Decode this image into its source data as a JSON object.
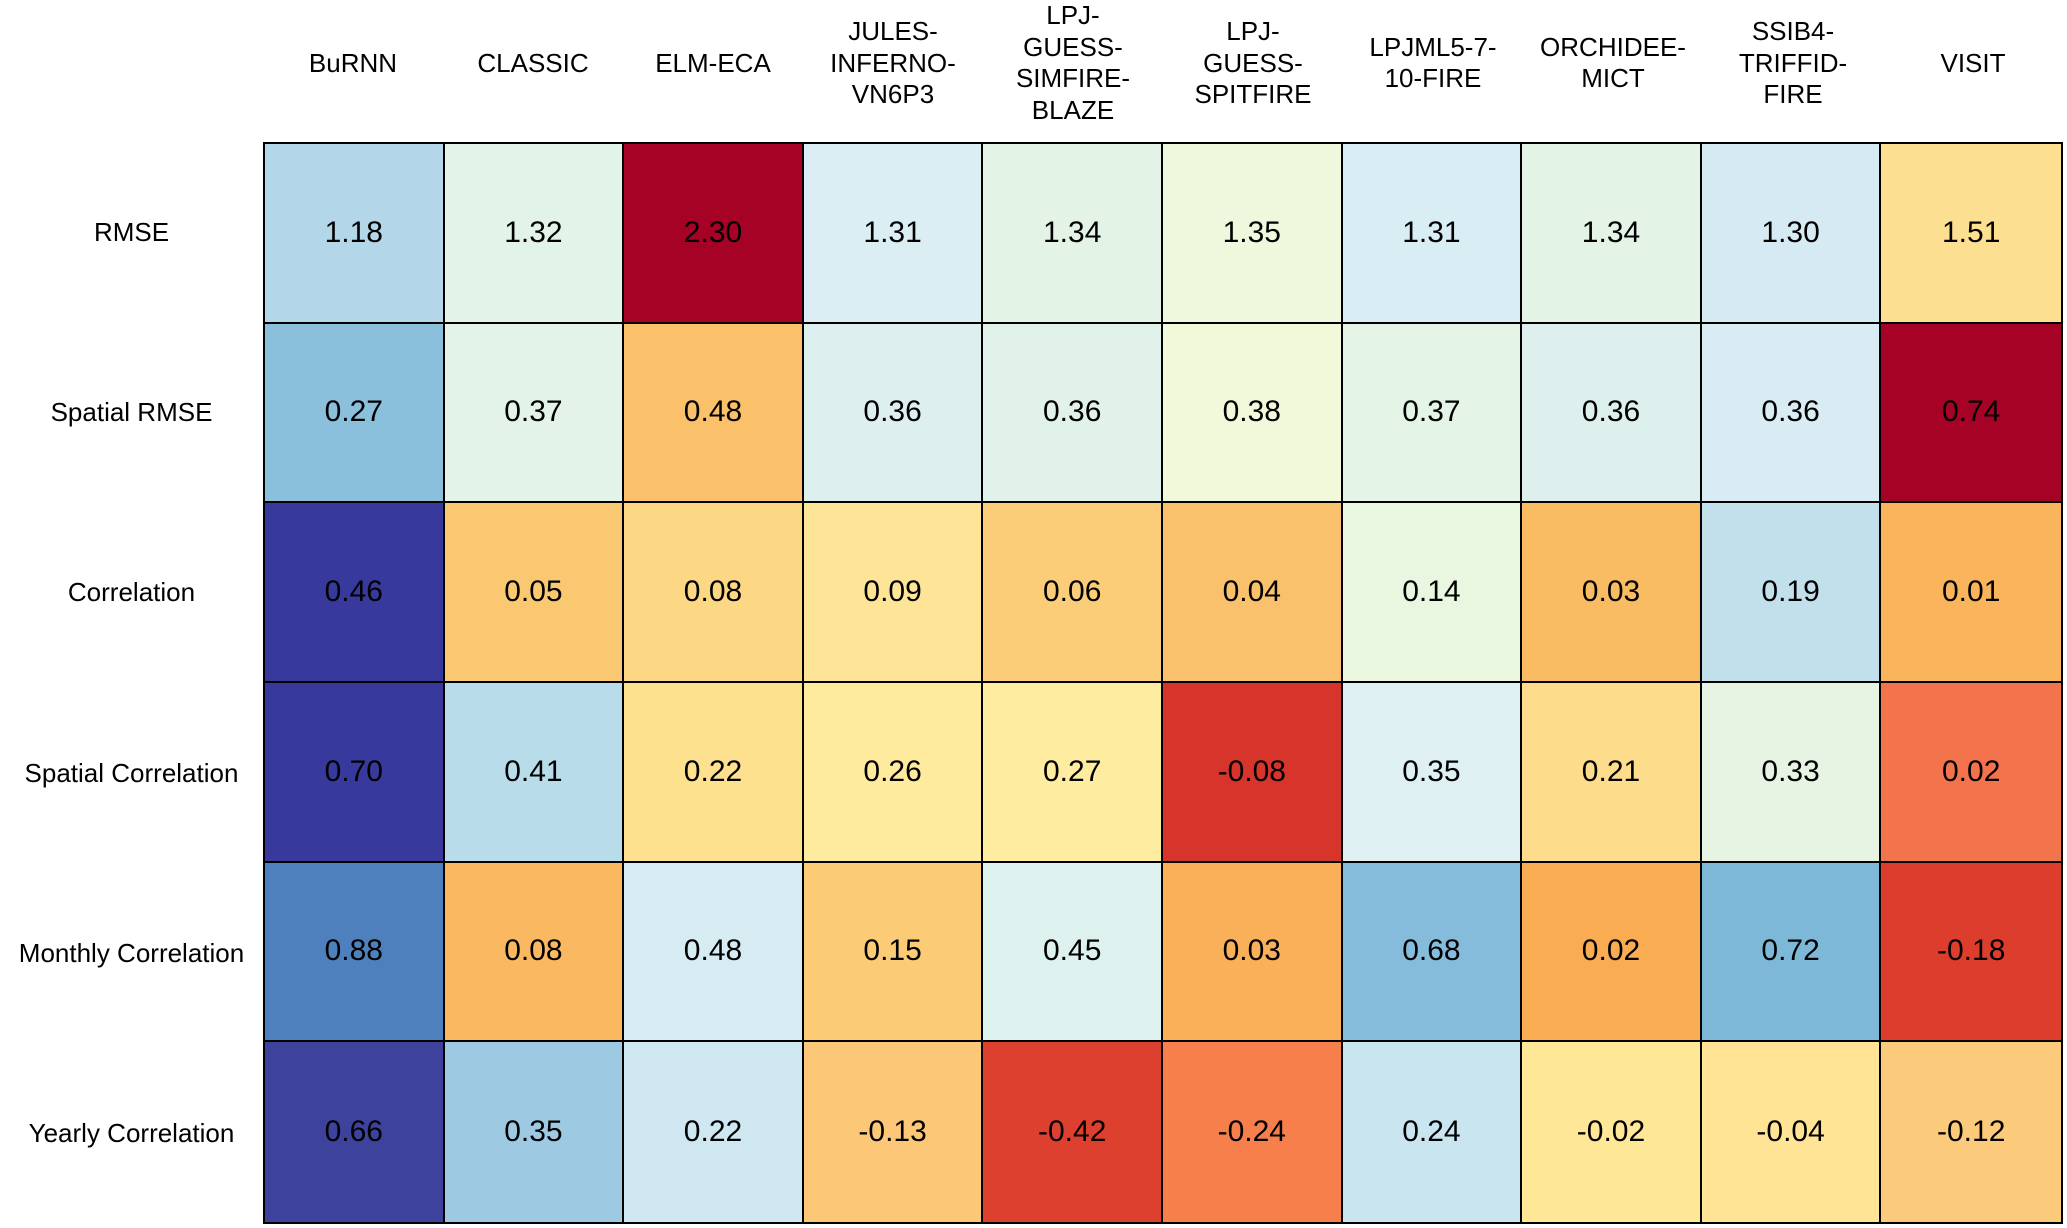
{
  "chart_data": {
    "type": "heatmap",
    "title": "",
    "colormap": "RdYlBu",
    "background": "#ffffff",
    "grid_color": "#000000",
    "text_color": "#000000",
    "value_format": "2 decimal places",
    "columns": [
      "BuRNN",
      "CLASSIC",
      "ELM-ECA",
      "JULES-INFERNO-VN6P3",
      "LPJ-GUESS-SIMFIRE-BLAZE",
      "LPJ-GUESS-SPITFIRE",
      "LPJML5-7-10-FIRE",
      "ORCHIDEE-MICT",
      "SSIB4-TRIFFID-FIRE",
      "VISIT"
    ],
    "column_display": [
      "BuRNN",
      "CLASSIC",
      "ELM-ECA",
      "JULES-\nINFERNO-\nVN6P3",
      "LPJ-\nGUESS-\nSIMFIRE-\nBLAZE",
      "LPJ-\nGUESS-\nSPITFIRE",
      "LPJML5-7-\n10-FIRE",
      "ORCHIDEE-\nMICT",
      "SSIB4-\nTRIFFID-\nFIRE",
      "VISIT"
    ],
    "rows": [
      "RMSE",
      "Spatial RMSE",
      "Correlation",
      "Spatial Correlation",
      "Monthly Correlation",
      "Yearly Correlation"
    ],
    "values": [
      [
        1.18,
        1.32,
        2.3,
        1.31,
        1.34,
        1.35,
        1.31,
        1.34,
        1.3,
        1.51
      ],
      [
        0.27,
        0.37,
        0.48,
        0.36,
        0.36,
        0.38,
        0.37,
        0.36,
        0.36,
        0.74
      ],
      [
        0.46,
        0.05,
        0.08,
        0.09,
        0.06,
        0.04,
        0.14,
        0.03,
        0.19,
        0.01
      ],
      [
        0.7,
        0.41,
        0.22,
        0.26,
        0.27,
        -0.08,
        0.35,
        0.21,
        0.33,
        0.02
      ],
      [
        0.88,
        0.08,
        0.48,
        0.15,
        0.45,
        0.03,
        0.68,
        0.02,
        0.72,
        -0.18
      ],
      [
        0.66,
        0.35,
        0.22,
        -0.13,
        -0.42,
        -0.24,
        0.24,
        -0.02,
        -0.04,
        -0.12
      ]
    ],
    "cell_colors": [
      [
        "#b3d7e8",
        "#e2f3e8",
        "#a50226",
        "#daeef3",
        "#e3f3e5",
        "#eef8dc",
        "#d9edf5",
        "#e3f3e6",
        "#d5eaf3",
        "#fcdf90"
      ],
      [
        "#8bc0dd",
        "#e3f3e8",
        "#fbc06a",
        "#ddf0ef",
        "#e1f2ea",
        "#f2f9da",
        "#e4f4e7",
        "#def0ed",
        "#d9ecf4",
        "#a50226"
      ],
      [
        "#373a9c",
        "#fbc872",
        "#fcd884",
        "#fde497",
        "#fbcd79",
        "#fac16c",
        "#e9f6e0",
        "#fabc63",
        "#c2e0ec",
        "#f9b45c"
      ],
      [
        "#373a9c",
        "#b9dcea",
        "#fde18f",
        "#feeb9e",
        "#feeca1",
        "#d7342c",
        "#def0f2",
        "#fddd8b",
        "#e7f4e4",
        "#f3734c"
      ],
      [
        "#4e80bd",
        "#fab961",
        "#d6ebf2",
        "#fbcb76",
        "#ddf1ee",
        "#f9b059",
        "#85bcdb",
        "#f9ac52",
        "#7eb8d9",
        "#dc3d2d"
      ],
      [
        "#3d429d",
        "#9dcae2",
        "#cfe7f1",
        "#fcc878",
        "#dd402f",
        "#f67f4b",
        "#c9e5ef",
        "#fee797",
        "#fee494",
        "#fcca7b"
      ]
    ]
  }
}
